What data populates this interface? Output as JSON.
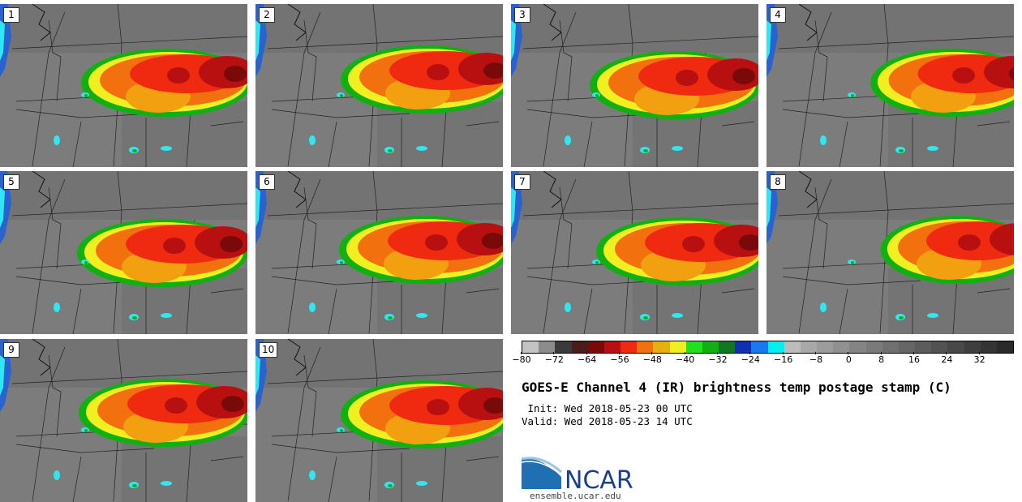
{
  "panels": [
    {
      "label": "1"
    },
    {
      "label": "2"
    },
    {
      "label": "3"
    },
    {
      "label": "4"
    },
    {
      "label": "5"
    },
    {
      "label": "6"
    },
    {
      "label": "7"
    },
    {
      "label": "8"
    },
    {
      "label": "9"
    },
    {
      "label": "10"
    }
  ],
  "colorbar": {
    "colors": [
      "#c4c4c4",
      "#8c8c8c",
      "#3a3a3a",
      "#4a1c1c",
      "#7a0a0a",
      "#b81010",
      "#f02a10",
      "#f2700e",
      "#e6b010",
      "#f0f020",
      "#20e020",
      "#10b010",
      "#107820",
      "#1030b0",
      "#1a78f0",
      "#00f0f0",
      "#bcbcbc",
      "#a8a8a8",
      "#9c9c9c",
      "#909090",
      "#848484",
      "#7a7a7a",
      "#707070",
      "#666666",
      "#5c5c5c",
      "#525252",
      "#484848",
      "#3e3e3e",
      "#343434",
      "#2a2a2a"
    ],
    "tick_labels": [
      "−80",
      "−72",
      "−64",
      "−56",
      "−48",
      "−40",
      "−32",
      "−24",
      "−16",
      "−8",
      "0",
      "8",
      "16",
      "24",
      "32"
    ]
  },
  "title": "GOES-E Channel 4 (IR) brightness temp postage stamp (C)",
  "init_line": " Init: Wed 2018-05-23 00 UTC",
  "valid_line": "Valid: Wed 2018-05-23 14 UTC",
  "logo_text": "NCAR",
  "url": "ensemble.ucar.edu"
}
